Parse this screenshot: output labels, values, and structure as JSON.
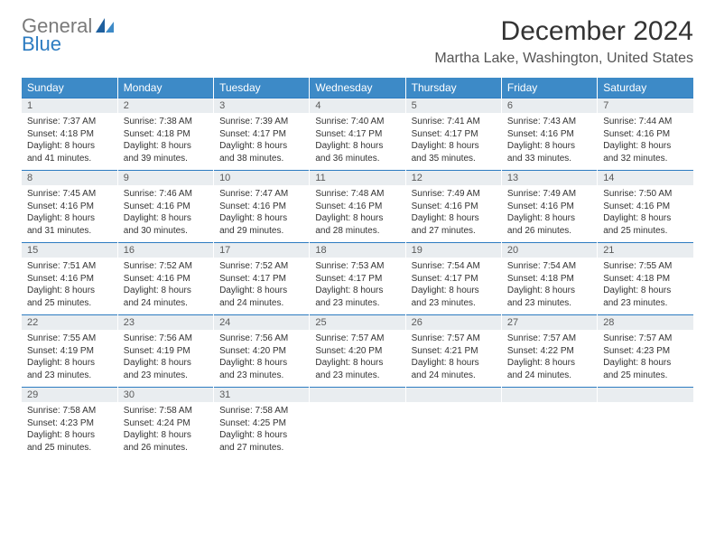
{
  "brand": {
    "general": "General",
    "blue": "Blue"
  },
  "title": "December 2024",
  "location": "Martha Lake, Washington, United States",
  "colors": {
    "header_bg": "#3d8ac7",
    "header_text": "#ffffff",
    "daynum_bg": "#e9edf0",
    "daynum_border": "#2d7cc1",
    "logo_gray": "#7a7a7a",
    "logo_blue": "#2d7cc1",
    "page_bg": "#ffffff",
    "body_text": "#333333"
  },
  "days_of_week": [
    "Sunday",
    "Monday",
    "Tuesday",
    "Wednesday",
    "Thursday",
    "Friday",
    "Saturday"
  ],
  "weeks": [
    [
      {
        "n": "1",
        "sr": "Sunrise: 7:37 AM",
        "ss": "Sunset: 4:18 PM",
        "dl": "Daylight: 8 hours and 41 minutes."
      },
      {
        "n": "2",
        "sr": "Sunrise: 7:38 AM",
        "ss": "Sunset: 4:18 PM",
        "dl": "Daylight: 8 hours and 39 minutes."
      },
      {
        "n": "3",
        "sr": "Sunrise: 7:39 AM",
        "ss": "Sunset: 4:17 PM",
        "dl": "Daylight: 8 hours and 38 minutes."
      },
      {
        "n": "4",
        "sr": "Sunrise: 7:40 AM",
        "ss": "Sunset: 4:17 PM",
        "dl": "Daylight: 8 hours and 36 minutes."
      },
      {
        "n": "5",
        "sr": "Sunrise: 7:41 AM",
        "ss": "Sunset: 4:17 PM",
        "dl": "Daylight: 8 hours and 35 minutes."
      },
      {
        "n": "6",
        "sr": "Sunrise: 7:43 AM",
        "ss": "Sunset: 4:16 PM",
        "dl": "Daylight: 8 hours and 33 minutes."
      },
      {
        "n": "7",
        "sr": "Sunrise: 7:44 AM",
        "ss": "Sunset: 4:16 PM",
        "dl": "Daylight: 8 hours and 32 minutes."
      }
    ],
    [
      {
        "n": "8",
        "sr": "Sunrise: 7:45 AM",
        "ss": "Sunset: 4:16 PM",
        "dl": "Daylight: 8 hours and 31 minutes."
      },
      {
        "n": "9",
        "sr": "Sunrise: 7:46 AM",
        "ss": "Sunset: 4:16 PM",
        "dl": "Daylight: 8 hours and 30 minutes."
      },
      {
        "n": "10",
        "sr": "Sunrise: 7:47 AM",
        "ss": "Sunset: 4:16 PM",
        "dl": "Daylight: 8 hours and 29 minutes."
      },
      {
        "n": "11",
        "sr": "Sunrise: 7:48 AM",
        "ss": "Sunset: 4:16 PM",
        "dl": "Daylight: 8 hours and 28 minutes."
      },
      {
        "n": "12",
        "sr": "Sunrise: 7:49 AM",
        "ss": "Sunset: 4:16 PM",
        "dl": "Daylight: 8 hours and 27 minutes."
      },
      {
        "n": "13",
        "sr": "Sunrise: 7:49 AM",
        "ss": "Sunset: 4:16 PM",
        "dl": "Daylight: 8 hours and 26 minutes."
      },
      {
        "n": "14",
        "sr": "Sunrise: 7:50 AM",
        "ss": "Sunset: 4:16 PM",
        "dl": "Daylight: 8 hours and 25 minutes."
      }
    ],
    [
      {
        "n": "15",
        "sr": "Sunrise: 7:51 AM",
        "ss": "Sunset: 4:16 PM",
        "dl": "Daylight: 8 hours and 25 minutes."
      },
      {
        "n": "16",
        "sr": "Sunrise: 7:52 AM",
        "ss": "Sunset: 4:16 PM",
        "dl": "Daylight: 8 hours and 24 minutes."
      },
      {
        "n": "17",
        "sr": "Sunrise: 7:52 AM",
        "ss": "Sunset: 4:17 PM",
        "dl": "Daylight: 8 hours and 24 minutes."
      },
      {
        "n": "18",
        "sr": "Sunrise: 7:53 AM",
        "ss": "Sunset: 4:17 PM",
        "dl": "Daylight: 8 hours and 23 minutes."
      },
      {
        "n": "19",
        "sr": "Sunrise: 7:54 AM",
        "ss": "Sunset: 4:17 PM",
        "dl": "Daylight: 8 hours and 23 minutes."
      },
      {
        "n": "20",
        "sr": "Sunrise: 7:54 AM",
        "ss": "Sunset: 4:18 PM",
        "dl": "Daylight: 8 hours and 23 minutes."
      },
      {
        "n": "21",
        "sr": "Sunrise: 7:55 AM",
        "ss": "Sunset: 4:18 PM",
        "dl": "Daylight: 8 hours and 23 minutes."
      }
    ],
    [
      {
        "n": "22",
        "sr": "Sunrise: 7:55 AM",
        "ss": "Sunset: 4:19 PM",
        "dl": "Daylight: 8 hours and 23 minutes."
      },
      {
        "n": "23",
        "sr": "Sunrise: 7:56 AM",
        "ss": "Sunset: 4:19 PM",
        "dl": "Daylight: 8 hours and 23 minutes."
      },
      {
        "n": "24",
        "sr": "Sunrise: 7:56 AM",
        "ss": "Sunset: 4:20 PM",
        "dl": "Daylight: 8 hours and 23 minutes."
      },
      {
        "n": "25",
        "sr": "Sunrise: 7:57 AM",
        "ss": "Sunset: 4:20 PM",
        "dl": "Daylight: 8 hours and 23 minutes."
      },
      {
        "n": "26",
        "sr": "Sunrise: 7:57 AM",
        "ss": "Sunset: 4:21 PM",
        "dl": "Daylight: 8 hours and 24 minutes."
      },
      {
        "n": "27",
        "sr": "Sunrise: 7:57 AM",
        "ss": "Sunset: 4:22 PM",
        "dl": "Daylight: 8 hours and 24 minutes."
      },
      {
        "n": "28",
        "sr": "Sunrise: 7:57 AM",
        "ss": "Sunset: 4:23 PM",
        "dl": "Daylight: 8 hours and 25 minutes."
      }
    ],
    [
      {
        "n": "29",
        "sr": "Sunrise: 7:58 AM",
        "ss": "Sunset: 4:23 PM",
        "dl": "Daylight: 8 hours and 25 minutes."
      },
      {
        "n": "30",
        "sr": "Sunrise: 7:58 AM",
        "ss": "Sunset: 4:24 PM",
        "dl": "Daylight: 8 hours and 26 minutes."
      },
      {
        "n": "31",
        "sr": "Sunrise: 7:58 AM",
        "ss": "Sunset: 4:25 PM",
        "dl": "Daylight: 8 hours and 27 minutes."
      },
      {
        "n": "",
        "sr": "",
        "ss": "",
        "dl": ""
      },
      {
        "n": "",
        "sr": "",
        "ss": "",
        "dl": ""
      },
      {
        "n": "",
        "sr": "",
        "ss": "",
        "dl": ""
      },
      {
        "n": "",
        "sr": "",
        "ss": "",
        "dl": ""
      }
    ]
  ]
}
